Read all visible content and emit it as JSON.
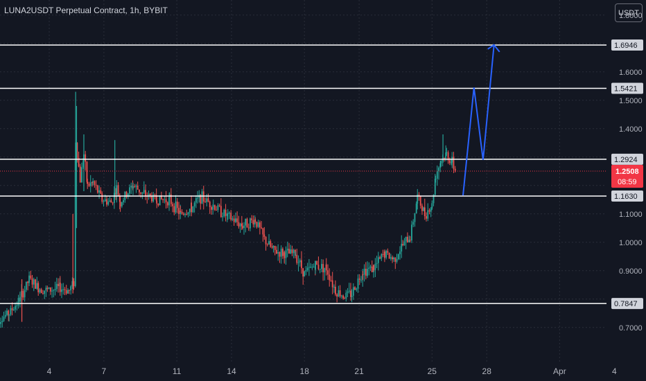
{
  "header": {
    "title": "LUNA2USDT Perpetual Contract, 1h, BYBIT",
    "currency": "USDT"
  },
  "colors": {
    "background": "#131722",
    "grid": "#2a2e39",
    "axis_text": "#b2b5be",
    "up": "#26a69a",
    "down": "#ef5350",
    "levels": "#ffffff",
    "projection": "#2962ff",
    "current_price_badge": "#f23645"
  },
  "chart_data": {
    "type": "candlestick",
    "title": "LUNA2USDT Perpetual Contract, 1h, BYBIT",
    "ylim": [
      0.66,
      1.85
    ],
    "y_ticks": [
      "1.8000",
      "1.6000",
      "1.5000",
      "1.4000",
      "1.1000",
      "1.0000",
      "0.9000",
      "0.7000"
    ],
    "x_ticks": [
      {
        "label": "4",
        "day": 4
      },
      {
        "label": "7",
        "day": 7
      },
      {
        "label": "11",
        "day": 11
      },
      {
        "label": "14",
        "day": 14
      },
      {
        "label": "18",
        "day": 18
      },
      {
        "label": "21",
        "day": 21
      },
      {
        "label": "25",
        "day": 25
      },
      {
        "label": "28",
        "day": 28
      },
      {
        "label": "Apr",
        "day": 32
      },
      {
        "label": "4",
        "day": 35
      }
    ],
    "horizontal_levels": [
      "1.6946",
      "1.5421",
      "1.2924",
      "1.1630",
      "0.7847"
    ],
    "current_price": "1.2508",
    "countdown": "08:59",
    "price_path": [
      [
        1.0,
        0.72
      ],
      [
        1.8,
        0.75
      ],
      [
        2.4,
        0.8
      ],
      [
        2.9,
        0.87
      ],
      [
        3.4,
        0.84
      ],
      [
        3.9,
        0.83
      ],
      [
        4.6,
        0.84
      ],
      [
        5.1,
        0.83
      ],
      [
        5.35,
        0.86
      ],
      [
        5.45,
        1.36
      ],
      [
        5.7,
        1.22
      ],
      [
        5.9,
        1.31
      ],
      [
        6.1,
        1.2
      ],
      [
        6.4,
        1.21
      ],
      [
        6.9,
        1.15
      ],
      [
        7.4,
        1.14
      ],
      [
        7.7,
        1.19
      ],
      [
        7.9,
        1.14
      ],
      [
        8.6,
        1.2
      ],
      [
        9.2,
        1.17
      ],
      [
        9.9,
        1.15
      ],
      [
        10.6,
        1.15
      ],
      [
        11.2,
        1.1
      ],
      [
        11.8,
        1.12
      ],
      [
        12.3,
        1.16
      ],
      [
        13.0,
        1.13
      ],
      [
        13.8,
        1.09
      ],
      [
        14.6,
        1.06
      ],
      [
        15.3,
        1.08
      ],
      [
        15.8,
        1.01
      ],
      [
        16.3,
        0.97
      ],
      [
        16.9,
        0.96
      ],
      [
        17.5,
        0.96
      ],
      [
        18.0,
        0.89
      ],
      [
        18.6,
        0.92
      ],
      [
        19.2,
        0.91
      ],
      [
        19.7,
        0.83
      ],
      [
        20.2,
        0.81
      ],
      [
        20.6,
        0.82
      ],
      [
        21.2,
        0.9
      ],
      [
        21.8,
        0.91
      ],
      [
        22.4,
        0.96
      ],
      [
        22.9,
        0.94
      ],
      [
        23.4,
        0.99
      ],
      [
        23.8,
        1.02
      ],
      [
        24.2,
        1.16
      ],
      [
        24.6,
        1.1
      ],
      [
        25.0,
        1.13
      ],
      [
        25.2,
        1.24
      ],
      [
        25.5,
        1.29
      ],
      [
        25.8,
        1.31
      ],
      [
        26.1,
        1.28
      ],
      [
        26.3,
        1.25
      ]
    ],
    "projection_path": [
      [
        26.7,
        1.165
      ],
      [
        27.3,
        1.545
      ],
      [
        27.8,
        1.29
      ],
      [
        28.4,
        1.695
      ]
    ]
  }
}
